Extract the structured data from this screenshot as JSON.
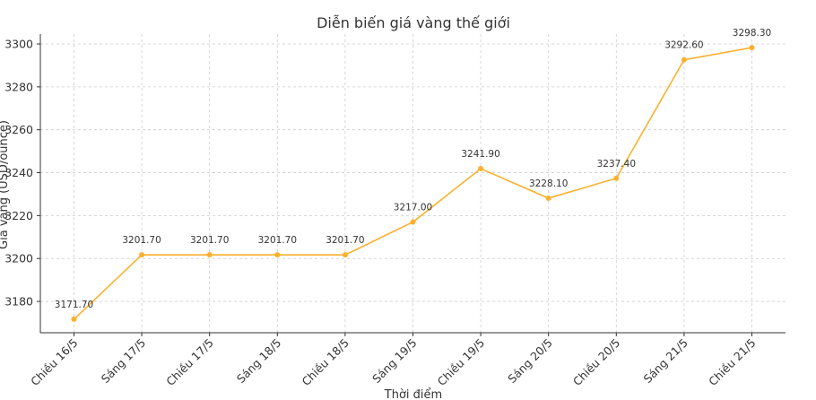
{
  "chart_data": {
    "type": "line",
    "title": "Diễn biến giá vàng thế giới",
    "xlabel": "Thời điểm",
    "ylabel": "Giá vàng (USD/ounce)",
    "categories": [
      "Chiều 16/5",
      "Sáng 17/5",
      "Chiều 17/5",
      "Sáng 18/5",
      "Chiều 18/5",
      "Sáng 19/5",
      "Chiều 19/5",
      "Sáng 20/5",
      "Chiều 20/5",
      "Sáng 21/5",
      "Chiều 21/5"
    ],
    "series": [
      {
        "values": [
          3171.7,
          3201.7,
          3201.7,
          3201.7,
          3201.7,
          3217.0,
          3241.9,
          3228.1,
          3237.4,
          3292.6,
          3298.3
        ],
        "data_labels": [
          "3171.70",
          "3201.70",
          "3201.70",
          "3201.70",
          "3201.70",
          "3217.00",
          "3241.90",
          "3228.10",
          "3237.40",
          "3292.60",
          "3298.30"
        ],
        "color": "#fbb02d"
      }
    ],
    "yticks": [
      3180,
      3200,
      3220,
      3240,
      3260,
      3280,
      3300
    ],
    "ylim": [
      3165.4,
      3304.6
    ],
    "grid": true,
    "marker": "circle"
  }
}
